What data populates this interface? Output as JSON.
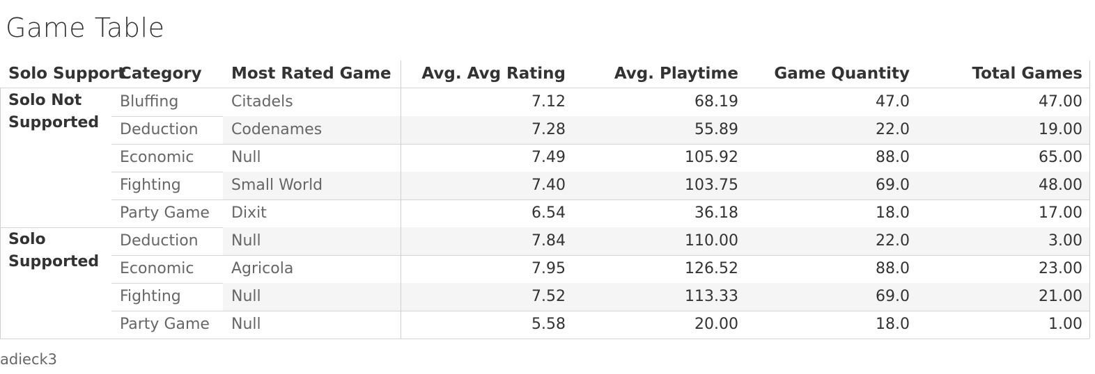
{
  "title": "Game Table",
  "footer": "adieck3",
  "columns": {
    "solo": "Solo Support",
    "category": "Category",
    "game": "Most Rated Game",
    "rating": "Avg. Avg Rating",
    "playtime": "Avg. Playtime",
    "quantity": "Game Quantity",
    "total": "Total Games"
  },
  "chart_data": {
    "type": "table",
    "groups": [
      {
        "label": "Solo Not Supported",
        "rows": [
          {
            "category": "Bluffing",
            "game": "Citadels",
            "rating": "7.12",
            "playtime": "68.19",
            "quantity": "47.0",
            "total": "47.00"
          },
          {
            "category": "Deduction",
            "game": "Codenames",
            "rating": "7.28",
            "playtime": "55.89",
            "quantity": "22.0",
            "total": "19.00"
          },
          {
            "category": "Economic",
            "game": "Null",
            "rating": "7.49",
            "playtime": "105.92",
            "quantity": "88.0",
            "total": "65.00"
          },
          {
            "category": "Fighting",
            "game": "Small World",
            "rating": "7.40",
            "playtime": "103.75",
            "quantity": "69.0",
            "total": "48.00"
          },
          {
            "category": "Party Game",
            "game": "Dixit",
            "rating": "6.54",
            "playtime": "36.18",
            "quantity": "18.0",
            "total": "17.00"
          }
        ]
      },
      {
        "label": "Solo Supported",
        "rows": [
          {
            "category": "Deduction",
            "game": "Null",
            "rating": "7.84",
            "playtime": "110.00",
            "quantity": "22.0",
            "total": "3.00"
          },
          {
            "category": "Economic",
            "game": "Agricola",
            "rating": "7.95",
            "playtime": "126.52",
            "quantity": "88.0",
            "total": "23.00"
          },
          {
            "category": "Fighting",
            "game": "Null",
            "rating": "7.52",
            "playtime": "113.33",
            "quantity": "69.0",
            "total": "21.00"
          },
          {
            "category": "Party Game",
            "game": "Null",
            "rating": "5.58",
            "playtime": "20.00",
            "quantity": "18.0",
            "total": "1.00"
          }
        ]
      }
    ]
  }
}
